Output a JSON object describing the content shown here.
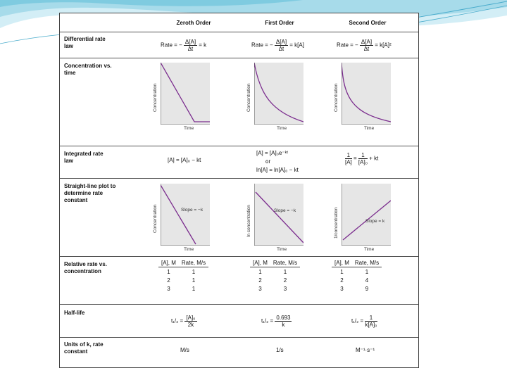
{
  "columns": {
    "c1": "Zeroth Order",
    "c2": "First Order",
    "c3": "Second Order"
  },
  "rows": {
    "diff": "Differential rate law",
    "conc": "Concentration vs. time",
    "integ": "Integrated rate law",
    "line": "Straight-line plot to determine rate constant",
    "rel": "Relative rate vs. concentration",
    "half": "Half-life",
    "units": "Units of k, rate constant"
  },
  "differential": {
    "prefix": "Rate = −",
    "num": "Δ[A]",
    "den": "Δt",
    "z_rhs": "= k",
    "f_rhs": "= k[A]",
    "s_rhs": "= k[A]²"
  },
  "axes": {
    "time": "Time",
    "concentration": "Concentration",
    "ln_conc": "ln concentration",
    "inv_conc": "1/concentration"
  },
  "integrated": {
    "zero": "[A] = [A]₀ − kt",
    "first_1": "[A] = [A]₀e⁻ᵏᵗ",
    "first_or": "or",
    "first_2": "ln[A] = ln[A]₀ − kt",
    "second_lhs_num": "1",
    "second_lhs_den": "[A]",
    "second_eq": "=",
    "second_rhs_num": "1",
    "second_rhs_den": "[A]₀",
    "second_tail": "+ kt"
  },
  "slopes": {
    "zero": "Slope = −k",
    "first": "Slope = −k",
    "second": "Slope = k"
  },
  "relative": {
    "h1": "[A], M",
    "h2": "Rate, M/s",
    "zero": [
      [
        "1",
        "1"
      ],
      [
        "2",
        "1"
      ],
      [
        "3",
        "1"
      ]
    ],
    "first": [
      [
        "1",
        "1"
      ],
      [
        "2",
        "2"
      ],
      [
        "3",
        "3"
      ]
    ],
    "second": [
      [
        "1",
        "1"
      ],
      [
        "2",
        "4"
      ],
      [
        "3",
        "9"
      ]
    ]
  },
  "halflife": {
    "t": "t₁/₂ =",
    "zero_num": "[A]₀",
    "zero_den": "2k",
    "first_num": "0.693",
    "first_den": "k",
    "second_num": "1",
    "second_den": "k[A]₀"
  },
  "units": {
    "zero": "M/s",
    "first": "1/s",
    "second": "M⁻¹·s⁻¹"
  }
}
